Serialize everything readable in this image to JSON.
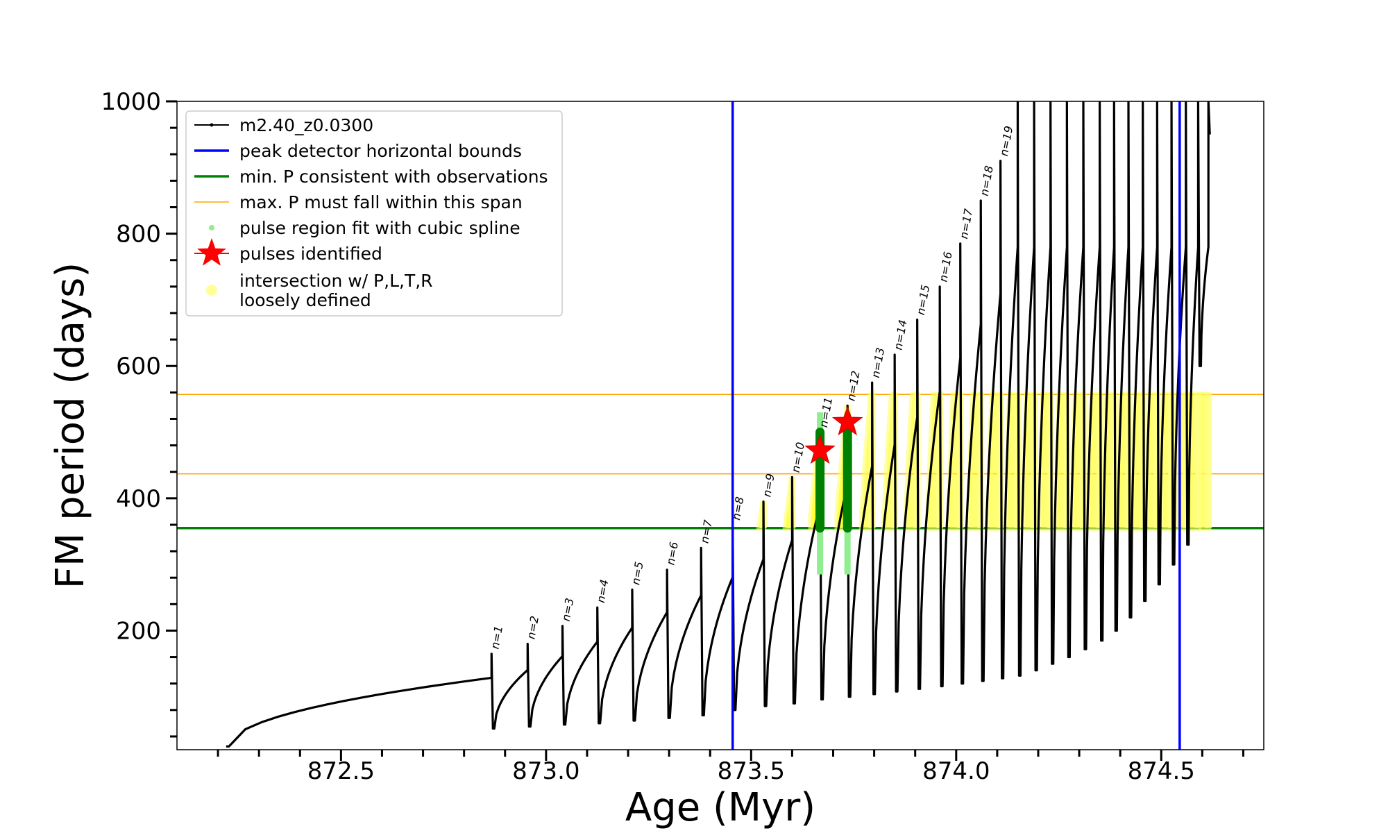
{
  "chart_data": {
    "type": "line",
    "xlabel": "Age (Myr)",
    "ylabel": "FM period (days)",
    "xlim": [
      872.1,
      874.75
    ],
    "ylim": [
      20,
      1000
    ],
    "xticks": [
      872.5,
      873.0,
      873.5,
      874.0,
      874.5
    ],
    "xtick_labels": [
      "872.5",
      "873.0",
      "873.5",
      "874.0",
      "874.5"
    ],
    "yticks": [
      200,
      400,
      600,
      800,
      1000
    ],
    "ytick_labels": [
      "200",
      "400",
      "600",
      "800",
      "1000"
    ],
    "legend_position": "top-left",
    "legend": [
      {
        "label": "m2.40_z0.0300",
        "kind": "line-marker",
        "color": "#000000"
      },
      {
        "label": "peak detector horizontal bounds",
        "kind": "line",
        "color": "#0000ff"
      },
      {
        "label": "min. P consistent with observations",
        "kind": "line",
        "color": "#008000"
      },
      {
        "label": "max. P must fall within this span",
        "kind": "thin-line",
        "color": "#ffa500"
      },
      {
        "label": "pulse region fit with cubic spline",
        "kind": "dot",
        "color": "#90ee90"
      },
      {
        "label": "pulses identified",
        "kind": "star",
        "color": "#ff0000"
      },
      {
        "label": "intersection w/ P,L,T,R\nloosely defined",
        "kind": "big-dot",
        "color": "#ffff99"
      }
    ],
    "vertical_bounds": [
      873.455,
      874.545
    ],
    "min_period_line": 355,
    "max_period_span": [
      437,
      557
    ],
    "pulses": [
      {
        "label": "n=1",
        "age": 872.867,
        "min": 52,
        "max": 165
      },
      {
        "label": "n=2",
        "age": 872.955,
        "min": 55,
        "max": 180
      },
      {
        "label": "n=3",
        "age": 873.04,
        "min": 58,
        "max": 207
      },
      {
        "label": "n=4",
        "age": 873.125,
        "min": 60,
        "max": 235
      },
      {
        "label": "n=5",
        "age": 873.21,
        "min": 64,
        "max": 262
      },
      {
        "label": "n=6",
        "age": 873.295,
        "min": 68,
        "max": 292
      },
      {
        "label": "n=7",
        "age": 873.378,
        "min": 72,
        "max": 325
      },
      {
        "label": "n=8",
        "age": 873.455,
        "min": 80,
        "max": 360
      },
      {
        "label": "n=9",
        "age": 873.53,
        "min": 86,
        "max": 395
      },
      {
        "label": "n=10",
        "age": 873.6,
        "min": 90,
        "max": 432
      },
      {
        "label": "n=11",
        "age": 873.668,
        "min": 96,
        "max": 500
      },
      {
        "label": "n=12",
        "age": 873.735,
        "min": 100,
        "max": 540
      },
      {
        "label": "n=13",
        "age": 873.795,
        "min": 104,
        "max": 575
      },
      {
        "label": "n=14",
        "age": 873.85,
        "min": 108,
        "max": 617
      },
      {
        "label": "n=15",
        "age": 873.905,
        "min": 112,
        "max": 670
      },
      {
        "label": "n=16",
        "age": 873.96,
        "min": 116,
        "max": 720
      },
      {
        "label": "n=17",
        "age": 874.01,
        "min": 120,
        "max": 785
      },
      {
        "label": "n=18",
        "age": 874.06,
        "min": 124,
        "max": 850
      },
      {
        "label": "n=19",
        "age": 874.108,
        "min": 128,
        "max": 910
      }
    ],
    "late_pulses": [
      {
        "age": 874.15,
        "min": 132,
        "max": 1000
      },
      {
        "age": 874.19,
        "min": 140,
        "max": 1000
      },
      {
        "age": 874.23,
        "min": 150,
        "max": 1000
      },
      {
        "age": 874.27,
        "min": 160,
        "max": 1000
      },
      {
        "age": 874.31,
        "min": 172,
        "max": 1000
      },
      {
        "age": 874.35,
        "min": 185,
        "max": 1000
      },
      {
        "age": 874.385,
        "min": 200,
        "max": 1000
      },
      {
        "age": 874.42,
        "min": 220,
        "max": 1000
      },
      {
        "age": 874.455,
        "min": 245,
        "max": 1000
      },
      {
        "age": 874.49,
        "min": 270,
        "max": 1000
      },
      {
        "age": 874.525,
        "min": 300,
        "max": 1000
      },
      {
        "age": 874.56,
        "min": 330,
        "max": 1000
      },
      {
        "age": 874.59,
        "min": 600,
        "max": 1000
      },
      {
        "age": 874.615,
        "min": 950,
        "max": 1000
      }
    ],
    "start": {
      "age": 872.22,
      "period": 25
    },
    "identified_pulses": [
      {
        "age": 873.668,
        "period": 472
      },
      {
        "age": 873.735,
        "period": 515
      }
    ]
  }
}
